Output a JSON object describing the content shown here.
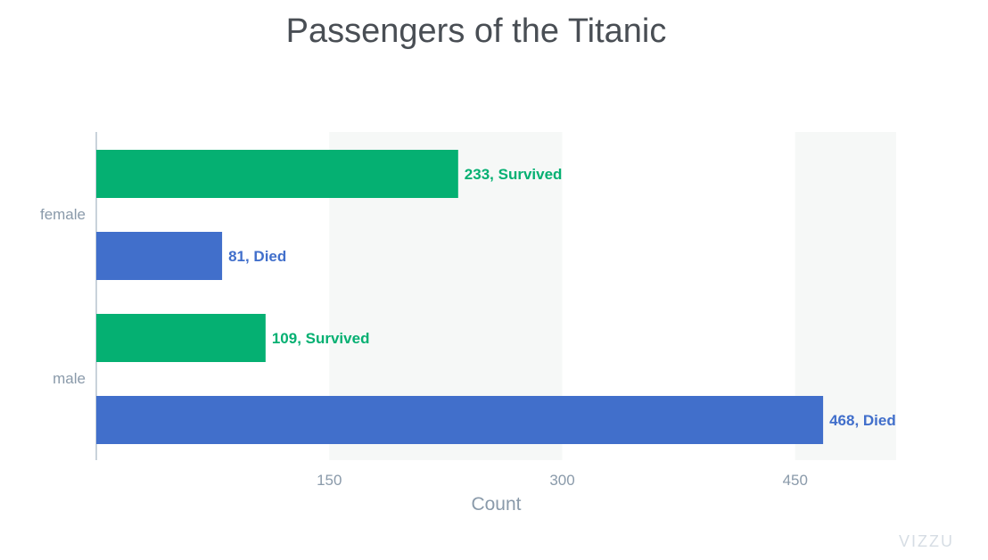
{
  "colors": {
    "survived": "#05b072",
    "died": "#416fcb",
    "band": "#f6f8f7",
    "axis_line": "#b7c4cf",
    "tick_label": "#8a9aaa"
  },
  "watermark": "VIZZU",
  "chart_data": {
    "type": "bar",
    "orientation": "horizontal",
    "title": "Passengers of the Titanic",
    "xlabel": "Count",
    "ylabel": "",
    "xlim": [
      0,
      515
    ],
    "x_ticks": [
      150,
      300,
      450
    ],
    "categories": [
      "female",
      "male"
    ],
    "series": [
      {
        "name": "Survived",
        "values": [
          233,
          109
        ],
        "labels": [
          "233, Survived",
          "109, Survived"
        ]
      },
      {
        "name": "Died",
        "values": [
          81,
          468
        ],
        "labels": [
          "81, Died",
          "468, Died"
        ]
      }
    ],
    "grid": "alternating vertical bands",
    "legend": "none"
  }
}
